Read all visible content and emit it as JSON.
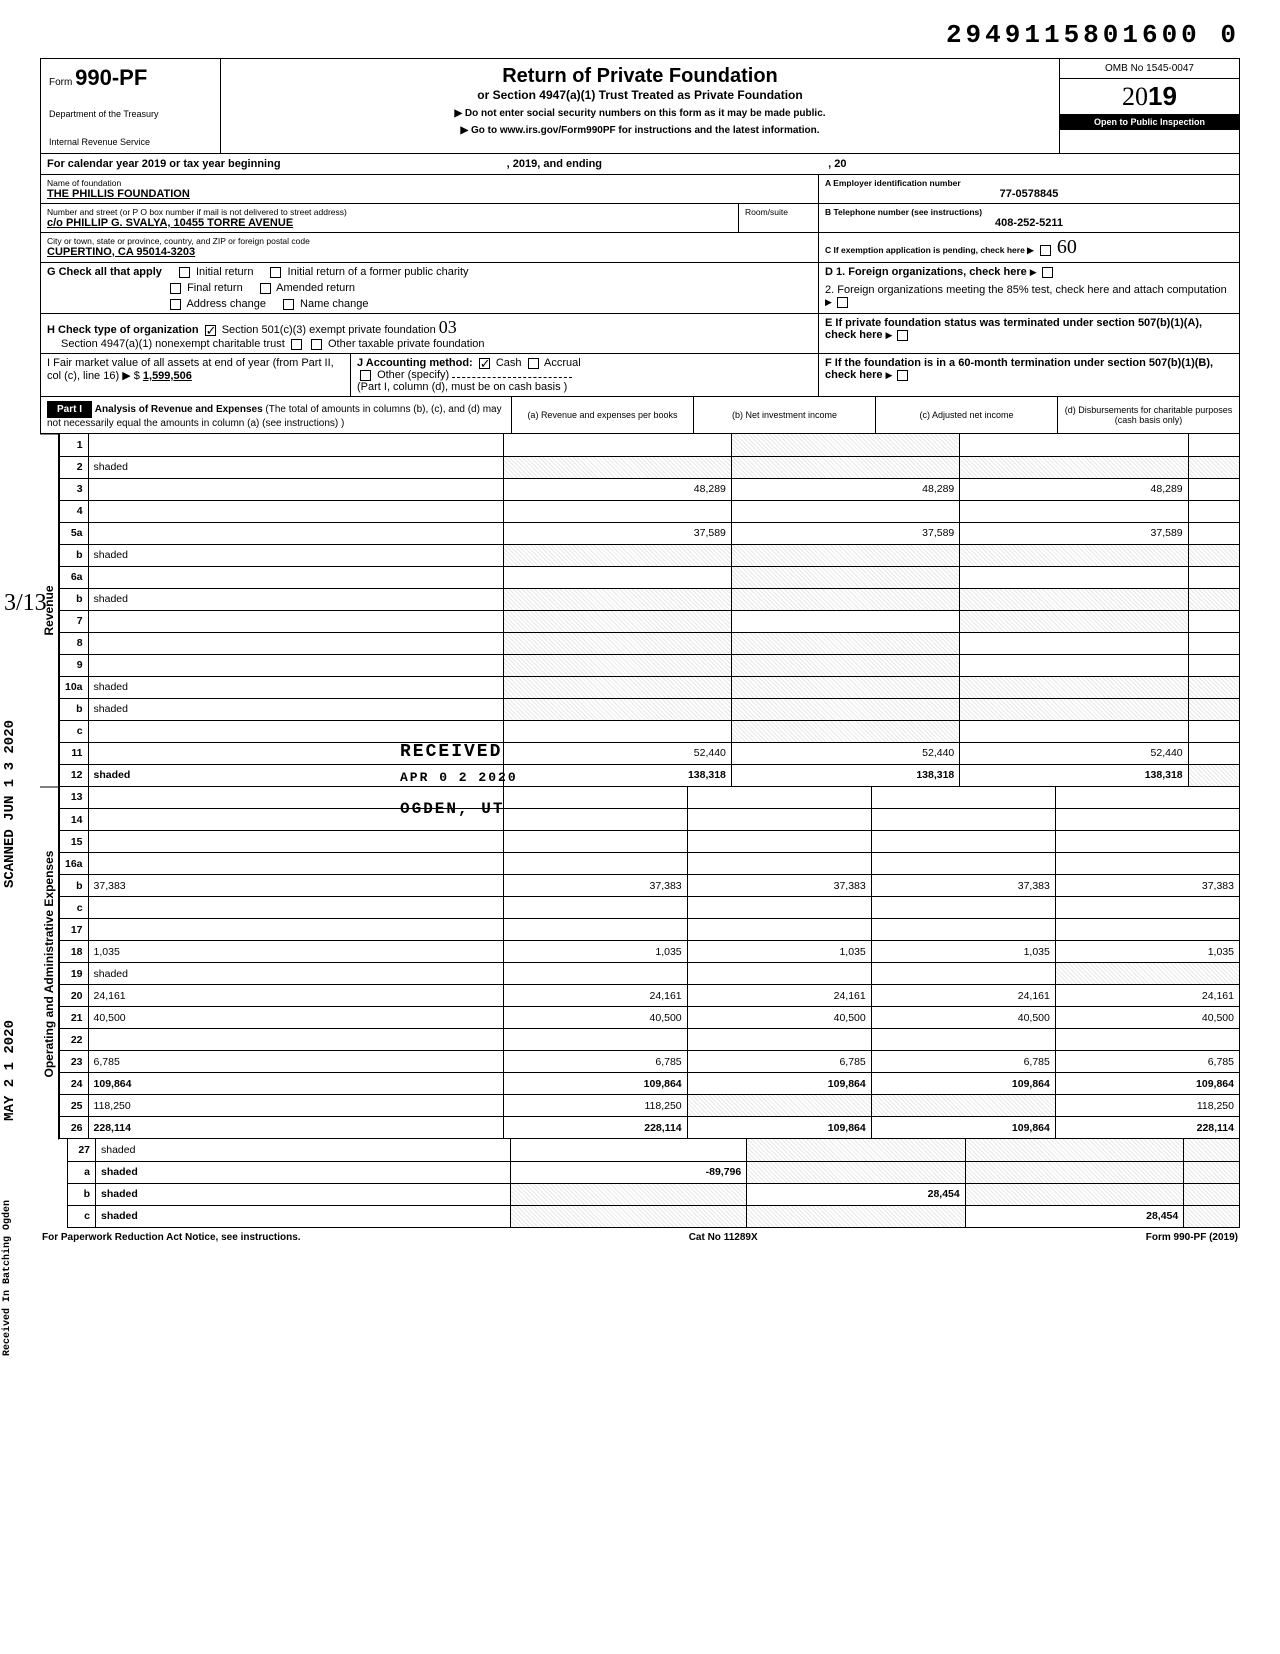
{
  "top_number": "2949115801600 0",
  "header": {
    "form_prefix": "Form",
    "form_number": "990-PF",
    "dept1": "Department of the Treasury",
    "dept2": "Internal Revenue Service",
    "title": "Return of Private Foundation",
    "subtitle": "or Section 4947(a)(1) Trust Treated as Private Foundation",
    "note1": "▶ Do not enter social security numbers on this form as it may be made public.",
    "note2": "▶ Go to www.irs.gov/Form990PF for instructions and the latest information.",
    "omb": "OMB No 1545-0047",
    "year_outline": "20",
    "year_bold": "19",
    "inspection": "Open to Public Inspection"
  },
  "cal_year": {
    "prefix": "For calendar year 2019 or tax year beginning",
    "mid": ", 2019, and ending",
    "suffix": ", 20"
  },
  "foundation": {
    "name_label": "Name of foundation",
    "name": "THE PHILLIS FOUNDATION",
    "addr_label": "Number and street (or P O  box number if mail is not delivered to street address)",
    "addr": "c/o PHILLIP G. SVALYA, 10455 TORRE AVENUE",
    "city_label": "City or town, state or province, country, and ZIP or foreign postal code",
    "city": "CUPERTINO, CA 95014-3203",
    "room_label": "Room/suite",
    "ein_label": "A  Employer identification number",
    "ein": "77-0578845",
    "phone_label": "B  Telephone number (see instructions)",
    "phone": "408-252-5211",
    "c_label": "C  If exemption application is pending, check here ▶"
  },
  "checks": {
    "g_label": "G  Check all that apply",
    "g_opts": [
      "Initial return",
      "Final return",
      "Address change",
      "Initial return of a former public charity",
      "Amended return",
      "Name change"
    ],
    "h_label": "H  Check type of organization",
    "h_501c3": "Section 501(c)(3) exempt private foundation",
    "h_4947": "Section 4947(a)(1) nonexempt charitable trust",
    "h_other": "Other taxable private foundation",
    "i_label": "I   Fair market value of all assets at end of year  (from Part II, col (c), line 16) ▶ $",
    "i_value": "1,599,506",
    "j_label": "J   Accounting method:",
    "j_cash": "Cash",
    "j_accrual": "Accrual",
    "j_other": "Other (specify)",
    "j_note": "(Part I, column (d), must be on cash basis )",
    "d_label": "D  1. Foreign organizations, check here",
    "d2_label": "2. Foreign organizations meeting the 85% test, check here and attach computation",
    "e_label": "E  If private foundation status was terminated under section 507(b)(1)(A), check here",
    "f_label": "F  If the foundation is in a 60-month termination under section 507(b)(1)(B), check here"
  },
  "part1": {
    "label": "Part I",
    "title": "Analysis of Revenue and Expenses",
    "title_note": "(The total of amounts in columns (b), (c), and (d) may not necessarily equal the amounts in column (a) (see instructions) )",
    "col_a": "(a) Revenue and expenses per books",
    "col_b": "(b) Net investment income",
    "col_c": "(c) Adjusted net income",
    "col_d": "(d) Disbursements for charitable purposes (cash basis only)"
  },
  "vert_labels": {
    "revenue": "Revenue",
    "expenses": "Operating and Administrative Expenses"
  },
  "lines": [
    {
      "n": "1",
      "d": "",
      "a": "",
      "b": "shaded",
      "c": ""
    },
    {
      "n": "2",
      "d": "shaded",
      "a": "shaded",
      "b": "shaded",
      "c": "shaded"
    },
    {
      "n": "3",
      "d": "",
      "a": "48,289",
      "b": "48,289",
      "c": "48,289"
    },
    {
      "n": "4",
      "d": "",
      "a": "",
      "b": "",
      "c": ""
    },
    {
      "n": "5a",
      "d": "",
      "a": "37,589",
      "b": "37,589",
      "c": "37,589"
    },
    {
      "n": "b",
      "d": "shaded",
      "a": "shaded",
      "b": "shaded",
      "c": "shaded"
    },
    {
      "n": "6a",
      "d": "",
      "a": "",
      "b": "shaded",
      "c": ""
    },
    {
      "n": "b",
      "d": "shaded",
      "a": "shaded",
      "b": "shaded",
      "c": "shaded"
    },
    {
      "n": "7",
      "d": "",
      "a": "shaded",
      "b": "",
      "c": "shaded"
    },
    {
      "n": "8",
      "d": "",
      "a": "shaded",
      "b": "shaded",
      "c": ""
    },
    {
      "n": "9",
      "d": "",
      "a": "shaded",
      "b": "shaded",
      "c": ""
    },
    {
      "n": "10a",
      "d": "shaded",
      "a": "shaded",
      "b": "shaded",
      "c": "shaded"
    },
    {
      "n": "b",
      "d": "shaded",
      "a": "shaded",
      "b": "shaded",
      "c": "shaded"
    },
    {
      "n": "c",
      "d": "",
      "a": "",
      "b": "shaded",
      "c": ""
    },
    {
      "n": "11",
      "d": "",
      "a": "52,440",
      "b": "52,440",
      "c": "52,440"
    },
    {
      "n": "12",
      "d": "shaded",
      "a": "138,318",
      "b": "138,318",
      "c": "138,318",
      "bold": true
    }
  ],
  "exp_lines": [
    {
      "n": "13",
      "d": "",
      "a": "",
      "b": "",
      "c": ""
    },
    {
      "n": "14",
      "d": "",
      "a": "",
      "b": "",
      "c": ""
    },
    {
      "n": "15",
      "d": "",
      "a": "",
      "b": "",
      "c": ""
    },
    {
      "n": "16a",
      "d": "",
      "a": "",
      "b": "",
      "c": ""
    },
    {
      "n": "b",
      "d": "37,383",
      "a": "37,383",
      "b": "37,383",
      "c": "37,383"
    },
    {
      "n": "c",
      "d": "",
      "a": "",
      "b": "",
      "c": ""
    },
    {
      "n": "17",
      "d": "",
      "a": "",
      "b": "",
      "c": ""
    },
    {
      "n": "18",
      "d": "1,035",
      "a": "1,035",
      "b": "1,035",
      "c": "1,035"
    },
    {
      "n": "19",
      "d": "shaded",
      "a": "",
      "b": "",
      "c": ""
    },
    {
      "n": "20",
      "d": "24,161",
      "a": "24,161",
      "b": "24,161",
      "c": "24,161"
    },
    {
      "n": "21",
      "d": "40,500",
      "a": "40,500",
      "b": "40,500",
      "c": "40,500"
    },
    {
      "n": "22",
      "d": "",
      "a": "",
      "b": "",
      "c": ""
    },
    {
      "n": "23",
      "d": "6,785",
      "a": "6,785",
      "b": "6,785",
      "c": "6,785"
    },
    {
      "n": "24",
      "d": "109,864",
      "a": "109,864",
      "b": "109,864",
      "c": "109,864",
      "bold": true
    },
    {
      "n": "25",
      "d": "118,250",
      "a": "118,250",
      "b": "shaded",
      "c": "shaded"
    },
    {
      "n": "26",
      "d": "228,114",
      "a": "228,114",
      "b": "109,864",
      "c": "109,864",
      "bold": true
    }
  ],
  "bottom_lines": [
    {
      "n": "27",
      "d": "shaded",
      "a": "",
      "b": "shaded",
      "c": "shaded"
    },
    {
      "n": "a",
      "d": "shaded",
      "a": "-89,796",
      "b": "shaded",
      "c": "shaded",
      "bold": true
    },
    {
      "n": "b",
      "d": "shaded",
      "a": "shaded",
      "b": "28,454",
      "c": "shaded",
      "bold": true
    },
    {
      "n": "c",
      "d": "shaded",
      "a": "shaded",
      "b": "shaded",
      "c": "28,454",
      "bold": true
    }
  ],
  "footer": {
    "left": "For Paperwork Reduction Act Notice, see instructions.",
    "mid": "Cat No 11289X",
    "right": "Form 990-PF (2019)"
  },
  "stamps": {
    "scanned": "SCANNED JUN 1 3 2020",
    "may": "MAY 2 1 2020",
    "batching": "Received In Batching Ogden",
    "received": "RECEIVED",
    "apr": "APR 0 2 2020",
    "ogden": "OGDEN, UT"
  },
  "handwritten": {
    "three_thirteen": "3/13",
    "zero_three": "03",
    "sixty": "60"
  },
  "colors": {
    "black": "#000000",
    "white": "#ffffff",
    "shade": "#e8e8e8"
  }
}
